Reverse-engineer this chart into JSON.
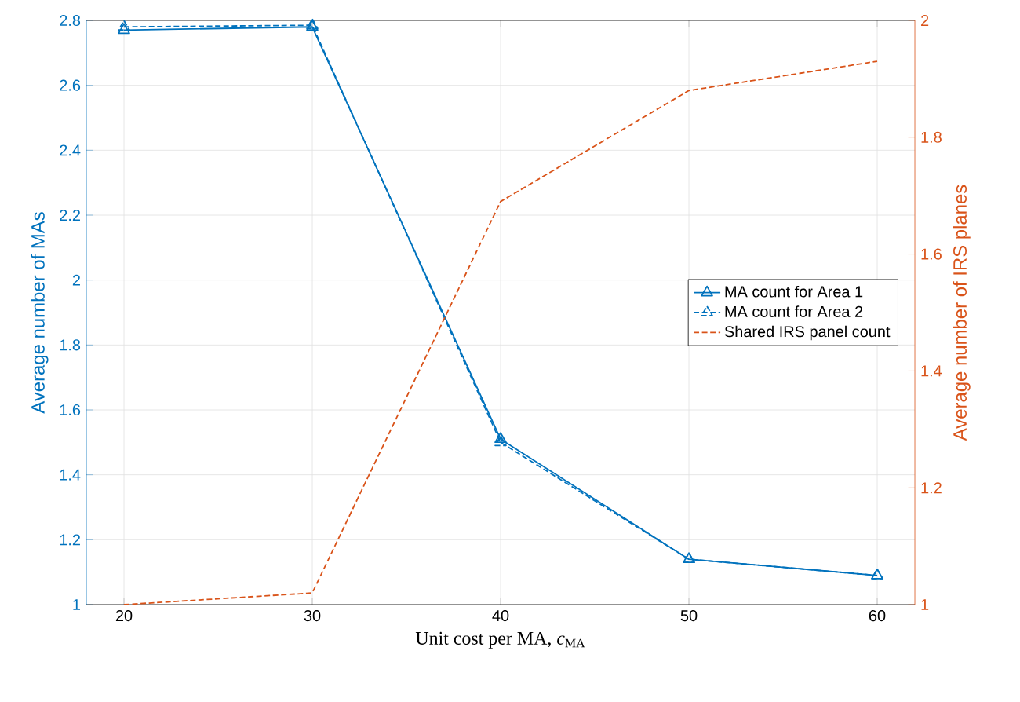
{
  "chart_data": {
    "type": "line",
    "xlabel": "Unit cost per MA, *c*$_{MA}$",
    "ylabel": "Average number of MAs",
    "y2label": "Average number of IRS planes",
    "x": [
      20,
      30,
      40,
      50,
      60
    ],
    "xlim": [
      18,
      62
    ],
    "xticks": [
      20,
      30,
      40,
      50,
      60
    ],
    "ylim": [
      1,
      2.8
    ],
    "yticks": [
      1,
      1.2,
      1.4,
      1.6,
      1.8,
      2,
      2.2,
      2.4,
      2.6,
      2.8
    ],
    "y2lim": [
      1,
      2
    ],
    "y2ticks": [
      1,
      1.2,
      1.4,
      1.6,
      1.8,
      2
    ],
    "grid": true,
    "legend": "right",
    "series": [
      {
        "name": "MA count for Area 1",
        "color": "#0072bd",
        "marker": "triangle",
        "line_style": "solid",
        "values": [
          2.77,
          2.78,
          1.51,
          1.14,
          1.09
        ]
      },
      {
        "name": "MA count for Area 2",
        "color": "#0072bd",
        "marker": "triangle",
        "line_style": "dashed",
        "values": [
          2.78,
          2.785,
          1.5,
          1.14,
          1.09
        ]
      },
      {
        "name": "Shared IRS panel count",
        "color": "#d95319",
        "marker": "none",
        "line_style": "dashed",
        "axis": "y2",
        "values": [
          1.0,
          1.02,
          1.69,
          1.88,
          1.93
        ]
      }
    ]
  }
}
